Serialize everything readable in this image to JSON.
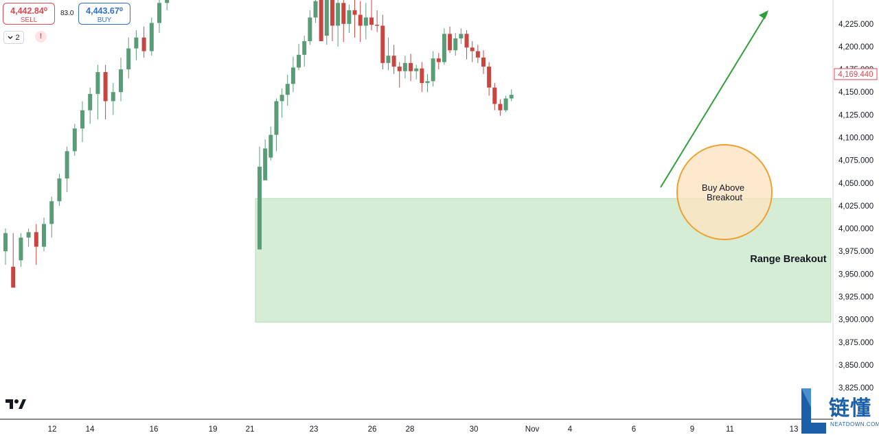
{
  "trade_panel": {
    "sell_price": "4,442.84⁰",
    "sell_label": "SELL",
    "spread": "83.0",
    "buy_price": "4,443.67⁰",
    "buy_label": "BUY",
    "indicator_count": "2",
    "alert_glyph": "!"
  },
  "icons": {
    "expand": "chevron-down-icon",
    "alert": "exclamation-icon",
    "logo": "tradingview-logo"
  },
  "colors": {
    "up": "#5b9c78",
    "down": "#c9453f",
    "zone": "#d5edd5",
    "zone_border": "#a8d8a8",
    "circle_fill": "#fde3c2",
    "circle_stroke": "#f0a030",
    "arrow": "#2f9e3a",
    "price_tag": "#e0474f"
  },
  "watermark": {
    "chinese": "链懂",
    "english": "NEATDOWN.COM"
  },
  "chart_data": {
    "type": "candlestick",
    "title": "",
    "ylim": [
      3815,
      4265
    ],
    "grid": false,
    "y_ticks": [
      "4,225.000",
      "4,200.000",
      "4,175.000",
      "4,150.000",
      "4,125.000",
      "4,100.000",
      "4,075.000",
      "4,050.000",
      "4,025.000",
      "4,000.000",
      "3,975.000",
      "3,950.000",
      "3,925.000",
      "3,900.000",
      "3,875.000",
      "3,850.000",
      "3,825.000"
    ],
    "x_ticks": [
      "12",
      "14",
      "16",
      "19",
      "21",
      "23",
      "26",
      "28",
      "30",
      "Nov",
      "4",
      "6",
      "9",
      "11",
      "13"
    ],
    "current_price": "4,169.440",
    "range_zone": {
      "low": 3897,
      "high": 4033,
      "label": "Range Breakout"
    },
    "breakout_annotation": {
      "label_line1": "Buy Above",
      "label_line2": "Breakout",
      "price": 4032
    },
    "candles": [
      [
        3977,
        4068,
        4090,
        4068
      ],
      [
        4053,
        4088,
        4098,
        4083
      ],
      [
        4078,
        4103,
        4112,
        4075
      ],
      [
        4103,
        4140,
        4143,
        4085
      ],
      [
        4140,
        4147,
        4154,
        4122
      ],
      [
        4147,
        4159,
        4169,
        4135
      ],
      [
        4159,
        4177,
        4189,
        4150
      ],
      [
        4177,
        4191,
        4203,
        4174
      ],
      [
        4191,
        4206,
        4212,
        4178
      ],
      [
        4206,
        4232,
        4240,
        4202
      ],
      [
        4232,
        4250,
        4262,
        4226
      ],
      [
        4262,
        4206,
        4288,
        4212
      ],
      [
        4212,
        4270,
        4282,
        4202
      ],
      [
        4270,
        4223,
        4280,
        4206
      ],
      [
        4223,
        4248,
        4262,
        4200
      ],
      [
        4248,
        4225,
        4258,
        4205
      ],
      [
        4225,
        4240,
        4246,
        4215
      ],
      [
        4240,
        4235,
        4254,
        4210
      ],
      [
        4235,
        4223,
        4250,
        4205
      ],
      [
        4223,
        4232,
        4248,
        4208
      ],
      [
        4232,
        4224,
        4252,
        4218
      ],
      [
        4224,
        4223,
        4240,
        4216
      ],
      [
        4223,
        4182,
        4235,
        4175
      ],
      [
        4182,
        4190,
        4210,
        4174
      ],
      [
        4190,
        4178,
        4202,
        4170
      ],
      [
        4178,
        4173,
        4183,
        4155
      ],
      [
        4173,
        4182,
        4190,
        4165
      ],
      [
        4182,
        4173,
        4192,
        4162
      ],
      [
        4173,
        4176,
        4180,
        4164
      ],
      [
        4176,
        4160,
        4183,
        4150
      ],
      [
        4160,
        4162,
        4170,
        4150
      ],
      [
        4162,
        4187,
        4195,
        4156
      ],
      [
        4187,
        4183,
        4193,
        4175
      ],
      [
        4183,
        4214,
        4220,
        4180
      ],
      [
        4214,
        4196,
        4222,
        4193
      ],
      [
        4196,
        4209,
        4215,
        4190
      ],
      [
        4209,
        4214,
        4220,
        4203
      ],
      [
        4214,
        4199,
        4218,
        4186
      ],
      [
        4199,
        4195,
        4206,
        4183
      ],
      [
        4195,
        4188,
        4202,
        4182
      ],
      [
        4188,
        4178,
        4196,
        4170
      ],
      [
        4178,
        4155,
        4183,
        4146
      ],
      [
        4155,
        4137,
        4160,
        4130
      ],
      [
        4137,
        4130,
        4142,
        4124
      ],
      [
        4130,
        4143,
        4146,
        4128
      ],
      [
        4143,
        4147,
        4153,
        4140
      ]
    ]
  }
}
